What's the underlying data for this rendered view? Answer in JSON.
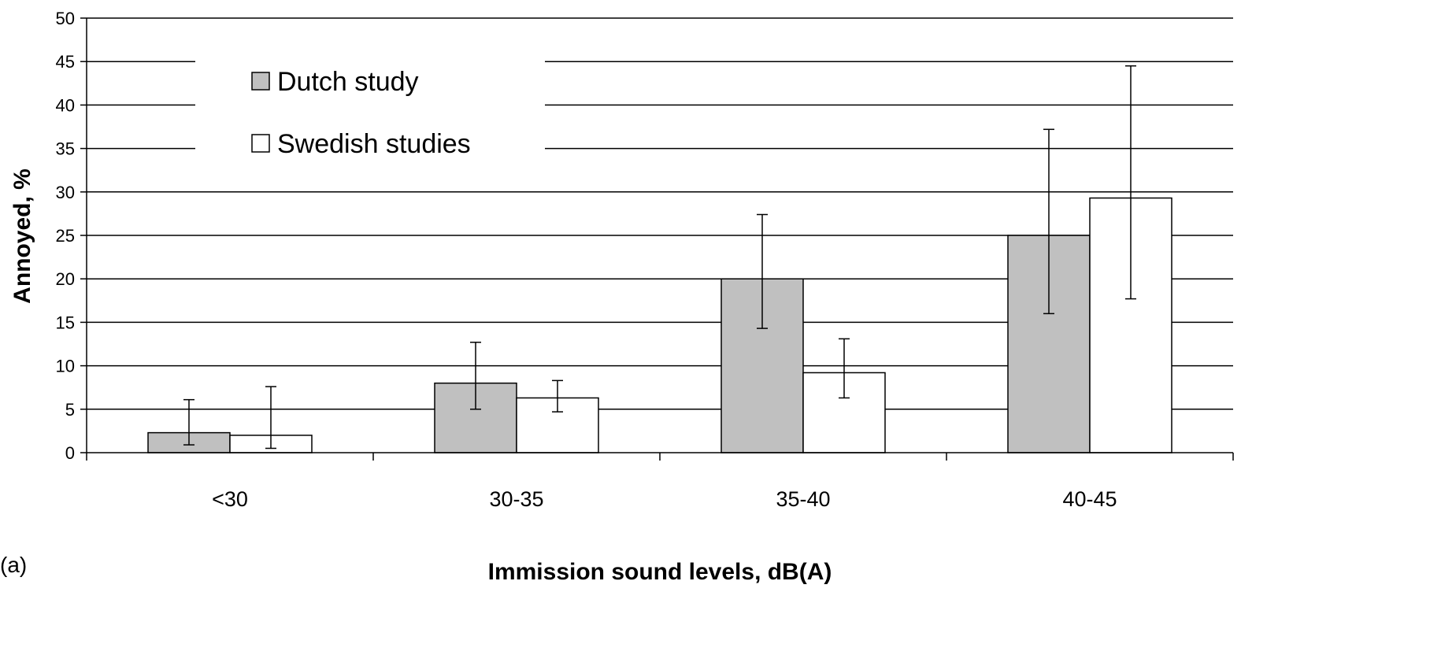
{
  "chart_data": {
    "type": "bar",
    "panel_label": "(a)",
    "xlabel": "Immission sound levels, dB(A)",
    "ylabel": "Annoyed, %",
    "ylim": [
      0,
      50
    ],
    "yticks": [
      "0",
      "5",
      "10",
      "15",
      "20",
      "25",
      "30",
      "35",
      "40",
      "45",
      "50"
    ],
    "categories": [
      "<30",
      "30-35",
      "35-40",
      "40-45"
    ],
    "series": [
      {
        "name": "Dutch study",
        "color": "#c0c0c0",
        "values": [
          2.3,
          8.0,
          20.0,
          25.0
        ],
        "error_low": [
          0.9,
          5.0,
          14.3,
          16.0
        ],
        "error_high": [
          6.1,
          12.7,
          27.4,
          37.2
        ]
      },
      {
        "name": "Swedish studies",
        "color": "#ffffff",
        "values": [
          2.0,
          6.3,
          9.2,
          29.3
        ],
        "error_low": [
          0.5,
          4.7,
          6.3,
          17.7
        ],
        "error_high": [
          7.6,
          8.3,
          13.1,
          44.5
        ]
      }
    ],
    "grid": true,
    "legend_position": "top-left"
  }
}
